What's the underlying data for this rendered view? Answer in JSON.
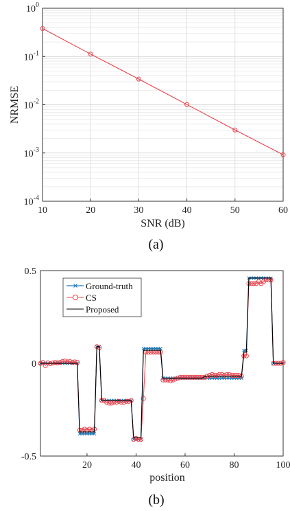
{
  "colors": {
    "red": "#e8414a",
    "blue": "#1f77b4",
    "black": "#000000",
    "grid": "#d9d9d9"
  },
  "chart_data": [
    {
      "type": "line",
      "panel_label": "(a)",
      "title": "",
      "xlabel": "SNR (dB)",
      "ylabel": "NRMSE",
      "xlim": [
        10,
        60
      ],
      "yscale": "log",
      "ylim": [
        0.0001,
        1
      ],
      "xticks": [
        "10",
        "20",
        "30",
        "40",
        "50",
        "60"
      ],
      "yticks": [
        {
          "base": "10",
          "exp": "0"
        },
        {
          "base": "10",
          "exp": "-1"
        },
        {
          "base": "10",
          "exp": "-2"
        },
        {
          "base": "10",
          "exp": "-3"
        },
        {
          "base": "10",
          "exp": "-4"
        }
      ],
      "grid": true,
      "series": [
        {
          "marker": "circle",
          "color": "#e8414a",
          "x": [
            10,
            20,
            30,
            40,
            50,
            60
          ],
          "y": [
            0.38,
            0.112,
            0.034,
            0.0101,
            0.003,
            0.00092
          ]
        }
      ]
    },
    {
      "type": "line",
      "panel_label": "(b)",
      "title": "",
      "xlabel": "position",
      "ylabel": "",
      "xlim": [
        1,
        100
      ],
      "ylim": [
        -0.5,
        0.5
      ],
      "xticks": [
        "20",
        "40",
        "60",
        "80",
        "100"
      ],
      "yticks": [
        "0.5",
        "0",
        "-0.5"
      ],
      "grid": false,
      "legend": "top-left",
      "series": [
        {
          "name": "Ground-truth",
          "color": "#1f77b4",
          "marker": "x",
          "x": [
            1,
            2,
            3,
            4,
            5,
            6,
            7,
            8,
            9,
            10,
            11,
            12,
            13,
            14,
            15,
            16,
            17,
            18,
            19,
            20,
            21,
            22,
            23,
            24,
            25,
            26,
            27,
            28,
            29,
            30,
            31,
            32,
            33,
            34,
            35,
            36,
            37,
            38,
            39,
            40,
            41,
            42,
            43,
            44,
            45,
            46,
            47,
            48,
            49,
            50,
            51,
            52,
            53,
            54,
            55,
            56,
            57,
            58,
            59,
            60,
            61,
            62,
            63,
            64,
            65,
            66,
            67,
            68,
            69,
            70,
            71,
            72,
            73,
            74,
            75,
            76,
            77,
            78,
            79,
            80,
            81,
            82,
            83,
            84,
            85,
            86,
            87,
            88,
            89,
            90,
            91,
            92,
            93,
            94,
            95,
            96,
            97,
            98,
            99,
            100
          ],
          "y": [
            0,
            0,
            0,
            0,
            0,
            0,
            0,
            0,
            0,
            0,
            0,
            0,
            0,
            0,
            0,
            0,
            -0.38,
            -0.38,
            -0.38,
            -0.38,
            -0.38,
            -0.38,
            -0.38,
            0.09,
            0.09,
            -0.2,
            -0.2,
            -0.2,
            -0.2,
            -0.2,
            -0.2,
            -0.2,
            -0.2,
            -0.2,
            -0.2,
            -0.2,
            -0.2,
            -0.2,
            -0.41,
            -0.41,
            -0.41,
            -0.41,
            0.08,
            0.08,
            0.08,
            0.08,
            0.08,
            0.08,
            0.08,
            0.08,
            -0.08,
            -0.08,
            -0.08,
            -0.08,
            -0.08,
            -0.08,
            -0.08,
            -0.08,
            -0.08,
            -0.08,
            -0.08,
            -0.08,
            -0.08,
            -0.08,
            -0.08,
            -0.08,
            -0.08,
            -0.08,
            -0.08,
            -0.08,
            -0.08,
            -0.08,
            -0.08,
            -0.08,
            -0.08,
            -0.08,
            -0.08,
            -0.08,
            -0.08,
            -0.08,
            -0.08,
            -0.08,
            -0.08,
            0.07,
            0.07,
            0.46,
            0.46,
            0.46,
            0.46,
            0.46,
            0.46,
            0.46,
            0.46,
            0.46,
            0.46,
            0,
            0,
            0,
            0,
            0
          ]
        },
        {
          "name": "CS",
          "color": "#e8414a",
          "marker": "circle",
          "x": [
            1,
            2,
            3,
            4,
            5,
            6,
            7,
            8,
            9,
            10,
            11,
            12,
            13,
            14,
            15,
            16,
            17,
            18,
            19,
            20,
            21,
            22,
            23,
            24,
            25,
            26,
            27,
            28,
            29,
            30,
            31,
            32,
            33,
            34,
            35,
            36,
            37,
            38,
            39,
            40,
            41,
            42,
            43,
            44,
            45,
            46,
            47,
            48,
            49,
            50,
            51,
            52,
            53,
            54,
            55,
            56,
            57,
            58,
            59,
            60,
            61,
            62,
            63,
            64,
            65,
            66,
            67,
            68,
            69,
            70,
            71,
            72,
            73,
            74,
            75,
            76,
            77,
            78,
            79,
            80,
            81,
            82,
            83,
            84,
            85,
            86,
            87,
            88,
            89,
            90,
            91,
            92,
            93,
            94,
            95,
            96,
            97,
            98,
            99,
            100
          ],
          "y": [
            0,
            0.005,
            -0.012,
            0.003,
            -0.002,
            0.002,
            0.005,
            0.003,
            0.005,
            0.01,
            0.012,
            0.008,
            0.01,
            0.005,
            0.008,
            0.005,
            -0.36,
            -0.36,
            -0.355,
            -0.36,
            -0.355,
            -0.36,
            -0.355,
            0.09,
            0.085,
            -0.2,
            -0.2,
            -0.21,
            -0.215,
            -0.215,
            -0.21,
            -0.21,
            -0.205,
            -0.21,
            -0.21,
            -0.205,
            -0.205,
            -0.2,
            -0.41,
            -0.405,
            -0.41,
            -0.41,
            -0.19,
            0.06,
            0.06,
            0.06,
            0.06,
            0.06,
            0.06,
            0.06,
            -0.09,
            -0.09,
            -0.09,
            -0.095,
            -0.09,
            -0.085,
            -0.08,
            -0.075,
            -0.075,
            -0.075,
            -0.075,
            -0.075,
            -0.075,
            -0.075,
            -0.075,
            -0.075,
            -0.075,
            -0.075,
            -0.07,
            -0.065,
            -0.06,
            -0.065,
            -0.065,
            -0.06,
            -0.06,
            -0.065,
            -0.06,
            -0.06,
            -0.065,
            -0.065,
            -0.065,
            -0.065,
            -0.07,
            0.04,
            0.04,
            0.43,
            0.43,
            0.43,
            0.43,
            0.44,
            0.43,
            0.44,
            0.45,
            0.45,
            0.45,
            0,
            0,
            0,
            0,
            0.005
          ]
        },
        {
          "name": "Proposed",
          "color": "#000000",
          "marker": "none",
          "x": [
            1,
            2,
            3,
            4,
            5,
            6,
            7,
            8,
            9,
            10,
            11,
            12,
            13,
            14,
            15,
            16,
            17,
            18,
            19,
            20,
            21,
            22,
            23,
            24,
            25,
            26,
            27,
            28,
            29,
            30,
            31,
            32,
            33,
            34,
            35,
            36,
            37,
            38,
            39,
            40,
            41,
            42,
            43,
            44,
            45,
            46,
            47,
            48,
            49,
            50,
            51,
            52,
            53,
            54,
            55,
            56,
            57,
            58,
            59,
            60,
            61,
            62,
            63,
            64,
            65,
            66,
            67,
            68,
            69,
            70,
            71,
            72,
            73,
            74,
            75,
            76,
            77,
            78,
            79,
            80,
            81,
            82,
            83,
            84,
            85,
            86,
            87,
            88,
            89,
            90,
            91,
            92,
            93,
            94,
            95,
            96,
            97,
            98,
            99,
            100
          ],
          "y": [
            0,
            0,
            0,
            0,
            0,
            0,
            0,
            0,
            0,
            0,
            0,
            0,
            0,
            0,
            0,
            0,
            -0.37,
            -0.37,
            -0.37,
            -0.37,
            -0.37,
            -0.37,
            -0.37,
            0.09,
            0.09,
            -0.2,
            -0.2,
            -0.2,
            -0.2,
            -0.2,
            -0.2,
            -0.2,
            -0.2,
            -0.2,
            -0.2,
            -0.2,
            -0.2,
            -0.2,
            -0.4,
            -0.4,
            -0.4,
            -0.4,
            0.07,
            0.07,
            0.07,
            0.07,
            0.07,
            0.07,
            0.07,
            0.07,
            -0.08,
            -0.08,
            -0.08,
            -0.08,
            -0.08,
            -0.08,
            -0.08,
            -0.08,
            -0.08,
            -0.08,
            -0.08,
            -0.08,
            -0.08,
            -0.08,
            -0.08,
            -0.08,
            -0.08,
            -0.07,
            -0.07,
            -0.07,
            -0.07,
            -0.07,
            -0.07,
            -0.07,
            -0.07,
            -0.07,
            -0.07,
            -0.07,
            -0.07,
            -0.07,
            -0.07,
            -0.07,
            -0.07,
            0.06,
            0.06,
            0.46,
            0.46,
            0.46,
            0.46,
            0.46,
            0.46,
            0.46,
            0.46,
            0.46,
            0.46,
            0,
            0,
            0,
            0,
            0
          ]
        }
      ]
    }
  ]
}
